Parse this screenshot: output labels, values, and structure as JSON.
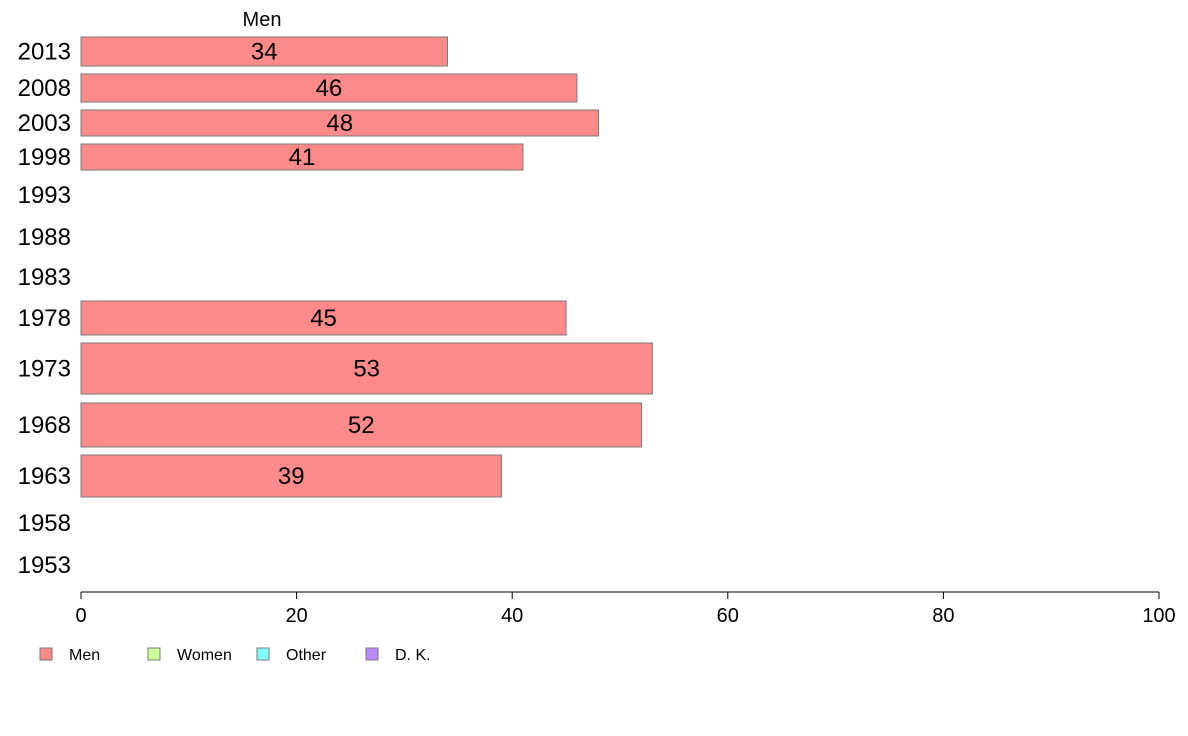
{
  "chart_data": {
    "type": "bar",
    "orientation": "horizontal",
    "series_header": "Men",
    "categories": [
      "2013",
      "2008",
      "2003",
      "1998",
      "1993",
      "1988",
      "1983",
      "1978",
      "1973",
      "1968",
      "1963",
      "1958",
      "1953"
    ],
    "series": [
      {
        "name": "Men",
        "values": [
          34,
          46,
          48,
          41,
          null,
          null,
          null,
          45,
          53,
          52,
          39,
          null,
          null
        ]
      }
    ],
    "xlim": [
      0,
      100
    ],
    "xticks": [
      0,
      20,
      40,
      60,
      80,
      100
    ],
    "grid": false,
    "legend": {
      "placement": "bottom-left",
      "items": [
        {
          "label": "Men",
          "color": "#ff8a8a"
        },
        {
          "label": "Women",
          "color": "#ccff99"
        },
        {
          "label": "Other",
          "color": "#80ffff"
        },
        {
          "label": "D. K.",
          "color": "#b88aff"
        }
      ]
    },
    "colors": {
      "bar_fill": "#ff8a8a",
      "bar_stroke": "#7a7a7a",
      "axis": "#000000"
    }
  }
}
